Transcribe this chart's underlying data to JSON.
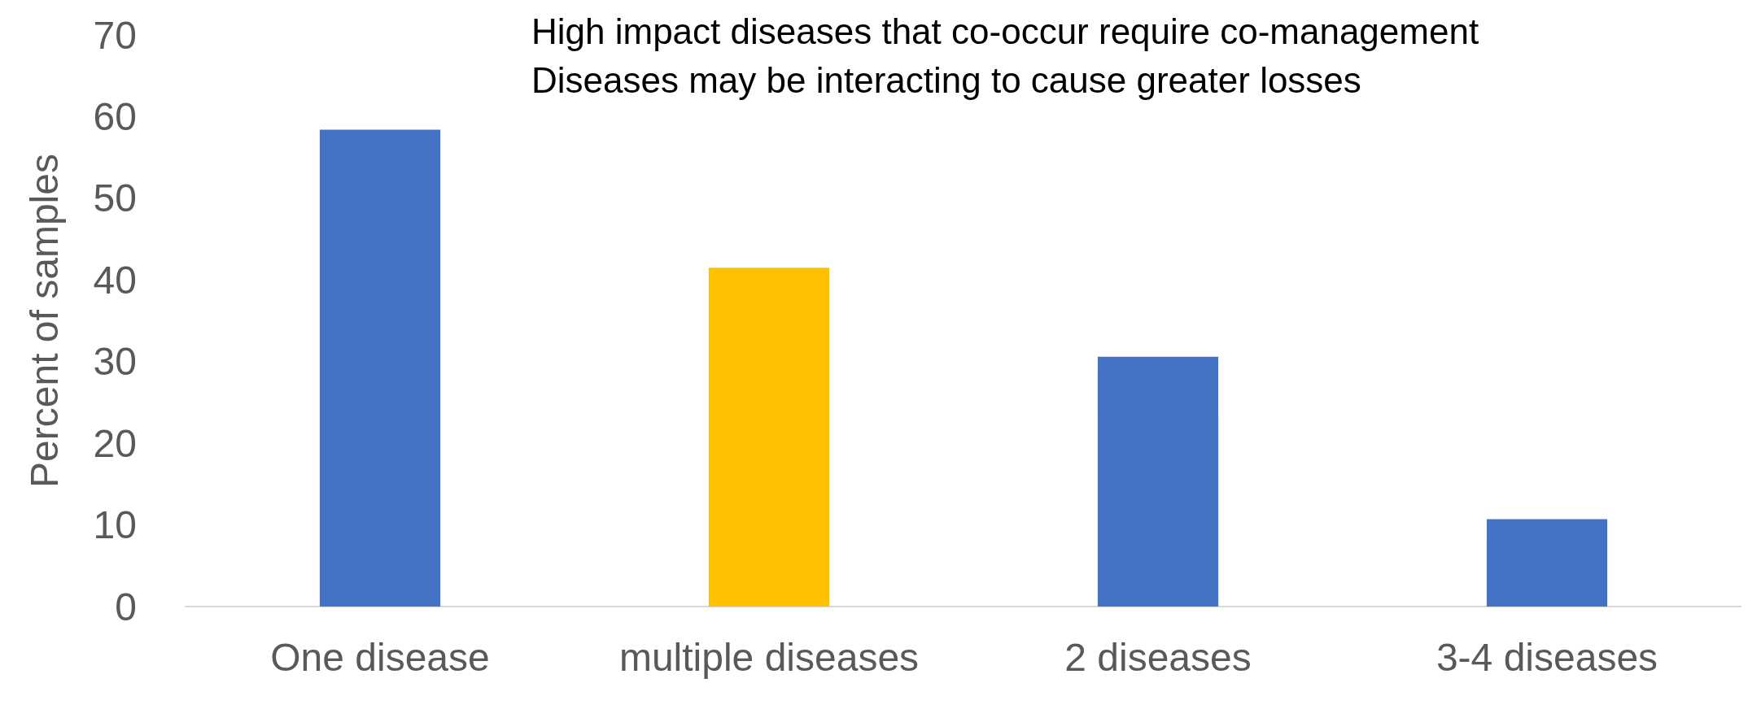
{
  "chart_data": {
    "type": "bar",
    "ylabel": "Percent of samples",
    "categories": [
      "One disease",
      "multiple diseases",
      "2 diseases",
      "3-4 diseases"
    ],
    "values": [
      58.4,
      41.5,
      30.6,
      10.7
    ],
    "colors": [
      "#4472c4",
      "#ffc000",
      "#4472c4",
      "#4472c4"
    ],
    "ylim": [
      0,
      70
    ],
    "yticks": [
      0,
      10,
      20,
      30,
      40,
      50,
      60,
      70
    ],
    "annotations": [
      "High impact diseases that co-occur require co-management",
      "Diseases may be interacting to cause greater losses"
    ]
  }
}
